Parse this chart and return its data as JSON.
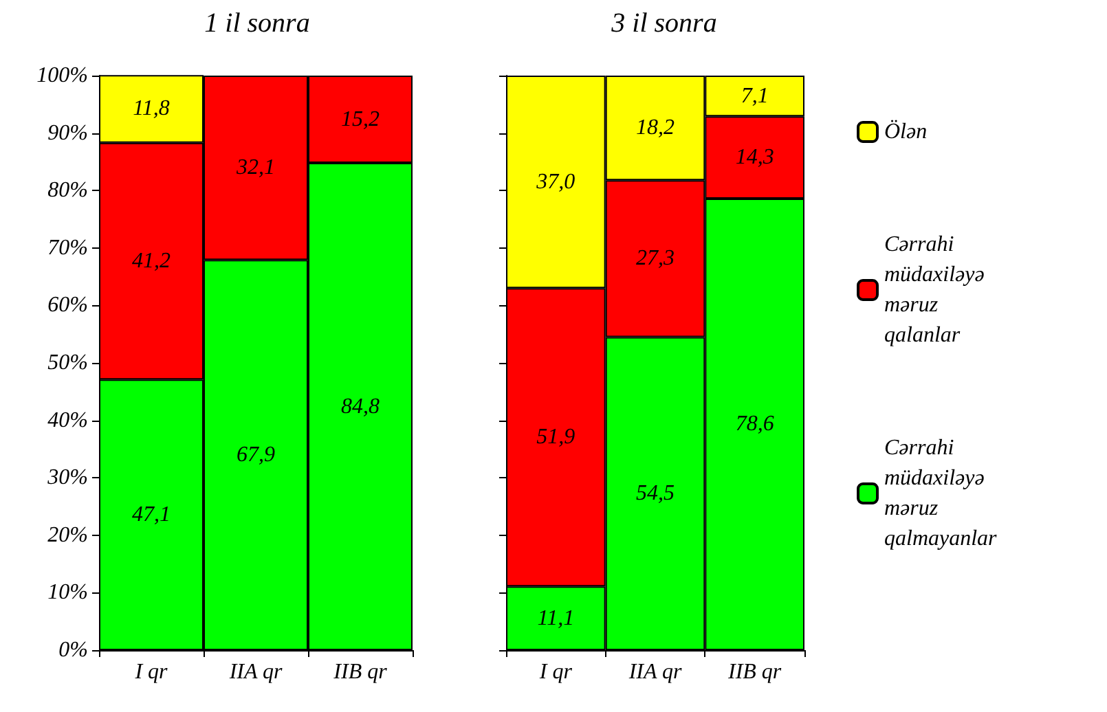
{
  "chart_data": [
    {
      "type": "bar",
      "stacked": true,
      "title": "1 il sonra",
      "categories": [
        "I qr",
        "IIA qr",
        "IIB qr"
      ],
      "ylim": [
        0,
        100
      ],
      "yticks": [
        {
          "value": 0,
          "label": "0%"
        },
        {
          "value": 10,
          "label": "10%"
        },
        {
          "value": 20,
          "label": "20%"
        },
        {
          "value": 30,
          "label": "30%"
        },
        {
          "value": 40,
          "label": "40%"
        },
        {
          "value": 50,
          "label": "50%"
        },
        {
          "value": 60,
          "label": "60%"
        },
        {
          "value": 70,
          "label": "70%"
        },
        {
          "value": 80,
          "label": "80%"
        },
        {
          "value": 90,
          "label": "90%"
        },
        {
          "value": 100,
          "label": "100%"
        }
      ],
      "grid": false,
      "series": [
        {
          "color": "#00ff00",
          "values": [
            47.1,
            67.9,
            84.8
          ],
          "value_labels": [
            "47,1",
            "67,9",
            "84,8"
          ]
        },
        {
          "color": "#ff0000",
          "values": [
            41.2,
            32.1,
            15.2
          ],
          "value_labels": [
            "41,2",
            "32,1",
            "15,2"
          ]
        },
        {
          "color": "#ffff00",
          "values": [
            11.8,
            null,
            null
          ],
          "value_labels": [
            "11,8",
            null,
            null
          ]
        }
      ]
    },
    {
      "type": "bar",
      "stacked": true,
      "title": "3 il sonra",
      "categories": [
        "I qr",
        "IIA qr",
        "IIB qr"
      ],
      "ylim": [
        0,
        100
      ],
      "yticks": [
        {
          "value": 0,
          "label": null
        },
        {
          "value": 10,
          "label": null
        },
        {
          "value": 20,
          "label": null
        },
        {
          "value": 30,
          "label": null
        },
        {
          "value": 40,
          "label": null
        },
        {
          "value": 50,
          "label": null
        },
        {
          "value": 60,
          "label": null
        },
        {
          "value": 70,
          "label": null
        },
        {
          "value": 80,
          "label": null
        },
        {
          "value": 90,
          "label": null
        },
        {
          "value": 100,
          "label": null
        }
      ],
      "grid": false,
      "tick_labels": "x",
      "legend": "right",
      "series": [
        {
          "name": "Cərrahi müdaxiləyə məruz qalmayanlar",
          "color": "#00ff00",
          "values": [
            11.1,
            54.5,
            78.6
          ],
          "value_labels": [
            "11,1",
            "54,5",
            "78,6"
          ]
        },
        {
          "name": "Cərrahi müdaxiləyə məruz qalanlar",
          "color": "#ff0000",
          "values": [
            51.9,
            27.3,
            14.3
          ],
          "value_labels": [
            "51,9",
            "27,3",
            "14,3"
          ]
        },
        {
          "name": "Ölən",
          "color": "#ffff00",
          "values": [
            37.0,
            18.2,
            7.1
          ],
          "value_labels": [
            "37,0",
            "18,2",
            "7,1"
          ]
        }
      ]
    }
  ]
}
